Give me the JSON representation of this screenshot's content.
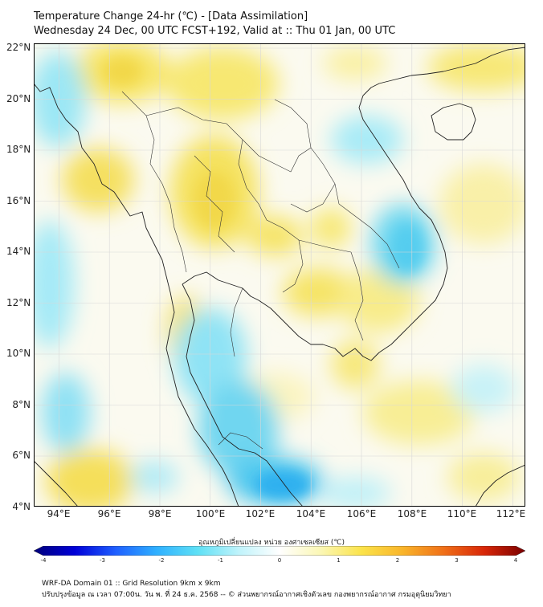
{
  "header": {
    "title": "Temperature Change 24-hr (℃) - [Data Assimilation]",
    "subtitle": "Wednesday 24 Dec, 00 UTC FCST+192, Valid at :: Thu 01 Jan, 00 UTC"
  },
  "map": {
    "lat_labels": [
      "22°N",
      "20°N",
      "18°N",
      "16°N",
      "14°N",
      "12°N",
      "10°N",
      "8°N",
      "6°N",
      "4°N"
    ],
    "lon_labels": [
      "94°E",
      "96°E",
      "98°E",
      "100°E",
      "102°E",
      "104°E",
      "106°E",
      "108°E",
      "110°E",
      "112°E"
    ],
    "lon_range": [
      93,
      112.5
    ],
    "lat_range": [
      4,
      22.2
    ]
  },
  "colorbar": {
    "title": "อุณหภูมิเปลี่ยนแปลง หน่วย องศาเซลเซียส (℃)",
    "ticks": [
      "-4",
      "-3",
      "-2",
      "-1",
      "0",
      "1",
      "2",
      "3",
      "4"
    ],
    "range": [
      -4,
      4
    ],
    "colors": [
      "#00007a",
      "#0000d8",
      "#1f5fff",
      "#2fb0ff",
      "#5ee0f5",
      "#bff3fb",
      "#ffffff",
      "#fbf7b5",
      "#fbe34a",
      "#f9b52a",
      "#f07018",
      "#d82608",
      "#7a0000"
    ]
  },
  "footer": {
    "line1": "WRF-DA Domain 01 :: Grid Resolution 9km x 9km",
    "line2": "ปรับปรุงข้อมูล ณ เวลา 07:00น. วัน พ. ที่ 24 ธ.ค. 2568 -- © ส่วนพยากรณ์อากาศเชิงตัวเลข กองพยากรณ์อากาศ กรมอุตุนิยมวิทยา"
  }
}
